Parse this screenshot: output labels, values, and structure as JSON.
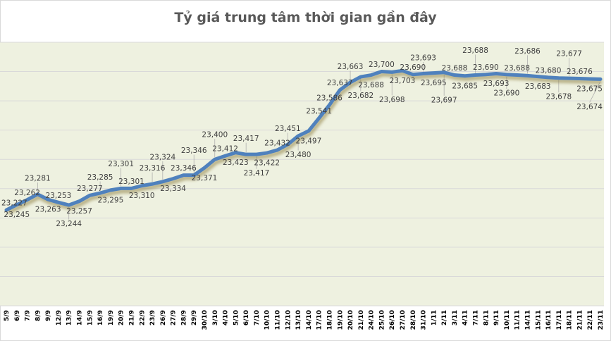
{
  "chart_data": {
    "type": "line",
    "title": "Tỷ giá trung tâm thời gian gần đây",
    "xlabel": "",
    "ylabel": "",
    "ylim": [
      22900,
      23800
    ],
    "grid": true,
    "legend": "none",
    "colors": {
      "line": "#4F81BD",
      "plot_bg": "#EEF1E0",
      "grid": "#D9D9D9",
      "title": "#595959"
    },
    "categories": [
      "5/9",
      "6/9",
      "7/9",
      "8/9",
      "9/9",
      "12/9",
      "13/9",
      "14/9",
      "15/9",
      "16/9",
      "19/9",
      "20/9",
      "21/9",
      "22/9",
      "23/9",
      "26/9",
      "27/9",
      "28/9",
      "29/9",
      "30/10",
      "3/10",
      "4/10",
      "5/10",
      "6/10",
      "7/10",
      "10/10",
      "11/10",
      "12/10",
      "13/10",
      "14/10",
      "17/10",
      "18/10",
      "19/10",
      "20/10",
      "21/10",
      "24/10",
      "25/10",
      "26/10",
      "27/10",
      "28/10",
      "31/10",
      "1/11",
      "2/11",
      "3/11",
      "4/11",
      "7/11",
      "8/11",
      "9/11",
      "10/11",
      "11/11",
      "14/11",
      "15/11",
      "16/11",
      "17/11",
      "18/11",
      "21/11",
      "22/11",
      "23/11"
    ],
    "values": [
      23227,
      23245,
      23262,
      23281,
      23263,
      23253,
      23244,
      23257,
      23277,
      23285,
      23295,
      23301,
      23301,
      23310,
      23316,
      23324,
      23334,
      23346,
      23346,
      23371,
      23400,
      23412,
      23423,
      23417,
      23417,
      23422,
      23432,
      23451,
      23480,
      23497,
      23541,
      23586,
      23637,
      23663,
      23682,
      23688,
      23700,
      23698,
      23703,
      23690,
      23693,
      23695,
      23697,
      23688,
      23685,
      23688,
      23690,
      23693,
      23690,
      23688,
      23686,
      23683,
      23680,
      23678,
      23677,
      23676,
      23675,
      23674
    ],
    "data_labels": [
      "23,227",
      "23,245",
      "23,262",
      "23,281",
      "23,263",
      "23,253",
      "23,244",
      "23,257",
      "23,277",
      "23,285",
      "23,295",
      "23,301",
      "23,301",
      "23,310",
      "23,316",
      "23,324",
      "23,334",
      "23,346",
      "23,346",
      "23,371",
      "23,400",
      "23,412",
      "23,423",
      "23,417",
      "23,417",
      "23,422",
      "23,432",
      "23,451",
      "23,480",
      "23,497",
      "23,541",
      "23,586",
      "23,637",
      "23,663",
      "23,682",
      "23,688",
      "23,700",
      "23,698",
      "23,703",
      "23,690",
      "23,693",
      "23,695",
      "23,697",
      "23,688",
      "23,685",
      "23,688",
      "23,690",
      "23,693",
      "23,690",
      "23,688",
      "23,686",
      "23,683",
      "23,680",
      "23,678",
      "23,677",
      "23,676",
      "23,675",
      "23,674"
    ]
  }
}
